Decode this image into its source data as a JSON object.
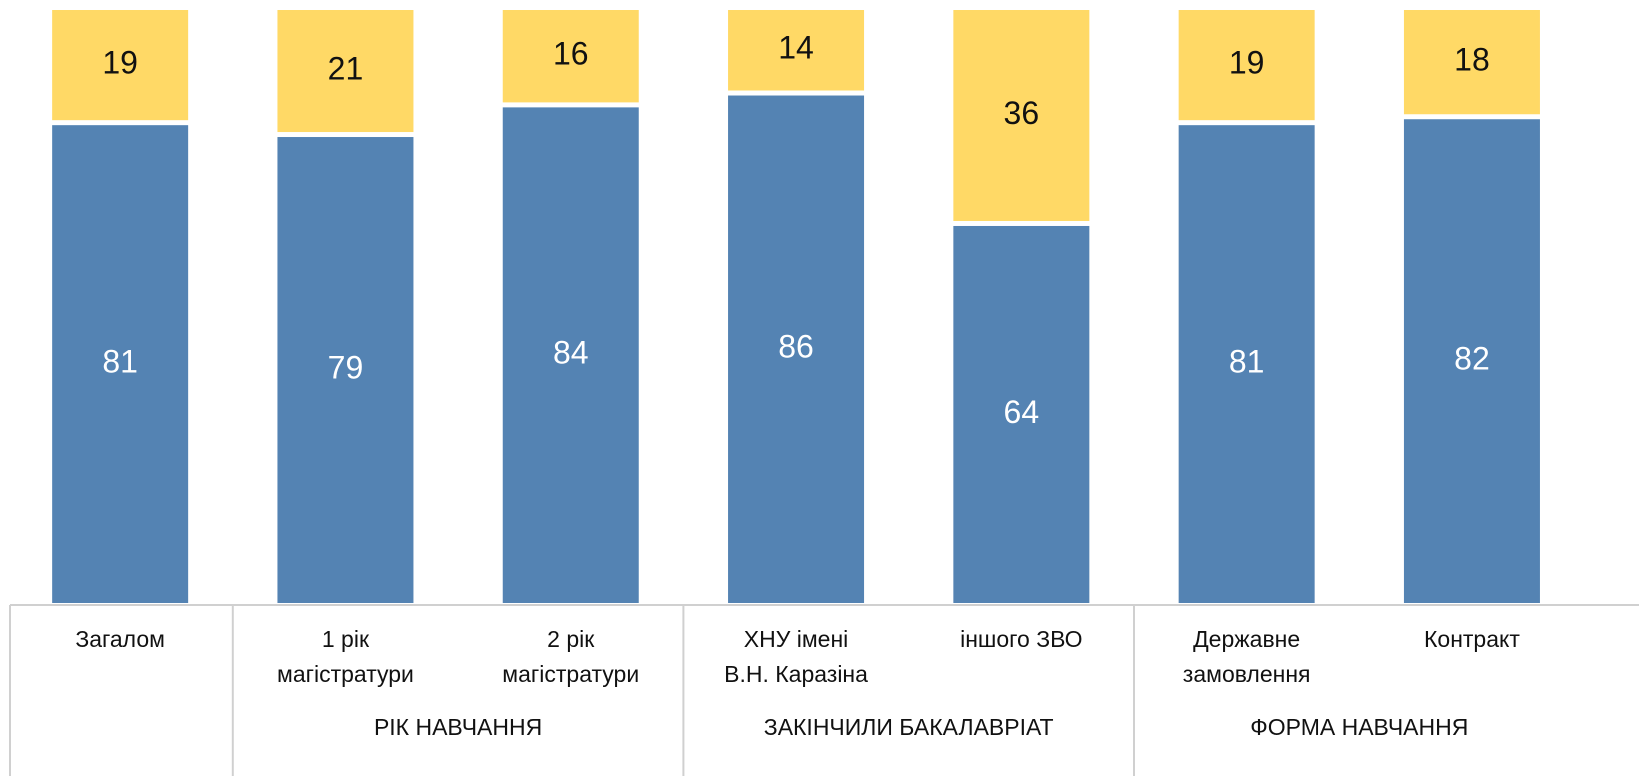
{
  "chart_data": {
    "type": "stacked-bar",
    "groups": [
      {
        "label": null,
        "categories": [
          "Загалом"
        ]
      },
      {
        "label": "РІК НАВЧАННЯ",
        "categories": [
          "1 рік\nмагістратури",
          "2 рік\nмагістратури"
        ]
      },
      {
        "label": "ЗАКІНЧИЛИ БАКАЛАВРІАТ",
        "categories": [
          "ХНУ імені\nВ.Н. Каразіна",
          "іншого ЗВО"
        ]
      },
      {
        "label": "ФОРМА НАВЧАННЯ",
        "categories": [
          "Державне\nзамовлення",
          "Контракт"
        ]
      }
    ],
    "series": [
      {
        "color": "#5483b3",
        "label_color": "#ffffff",
        "values": [
          81,
          79,
          84,
          86,
          64,
          81,
          82
        ]
      },
      {
        "color": "#ffd966",
        "label_color": "#111111",
        "values": [
          19,
          21,
          16,
          14,
          36,
          19,
          18
        ]
      }
    ],
    "ylim": [
      0,
      100
    ]
  }
}
